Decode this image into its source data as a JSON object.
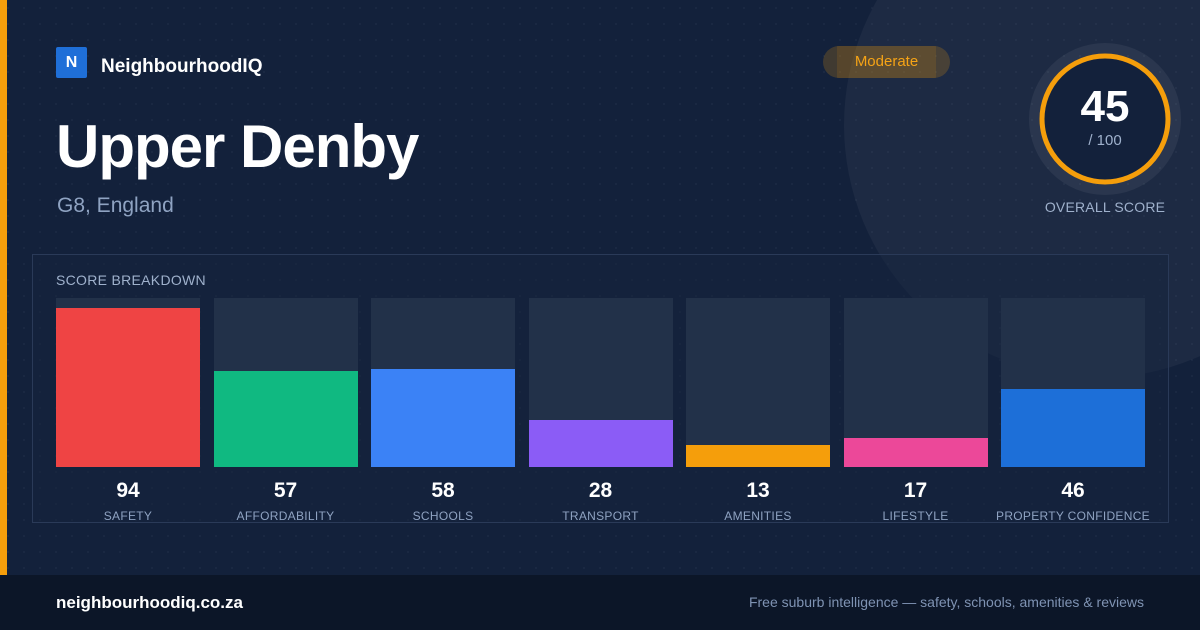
{
  "brand": {
    "logo_letter": "N",
    "name": "NeighbourhoodIQ"
  },
  "location": {
    "name": "Upper Denby",
    "region": "G8, England"
  },
  "rating": {
    "label": "Moderate",
    "color": "#f59e0b"
  },
  "overall": {
    "score": 45,
    "max_label": "/ 100",
    "caption": "OVERALL SCORE",
    "ring_color": "#f59e0b"
  },
  "chart_data": {
    "type": "bar",
    "title": "SCORE BREAKDOWN",
    "ylim": [
      0,
      100
    ],
    "categories": [
      "SAFETY",
      "AFFORDABILITY",
      "SCHOOLS",
      "TRANSPORT",
      "AMENITIES",
      "LIFESTYLE",
      "PROPERTY CONFIDENCE"
    ],
    "values": [
      94,
      57,
      58,
      28,
      13,
      17,
      46
    ],
    "colors": [
      "#ef4444",
      "#10b981",
      "#3b82f6",
      "#8b5cf6",
      "#f59e0b",
      "#ec4899",
      "#1d6fd8"
    ]
  },
  "footer": {
    "site": "neighbourhoodiq.co.za",
    "tagline": "Free suburb intelligence — safety, schools, amenities & reviews"
  }
}
